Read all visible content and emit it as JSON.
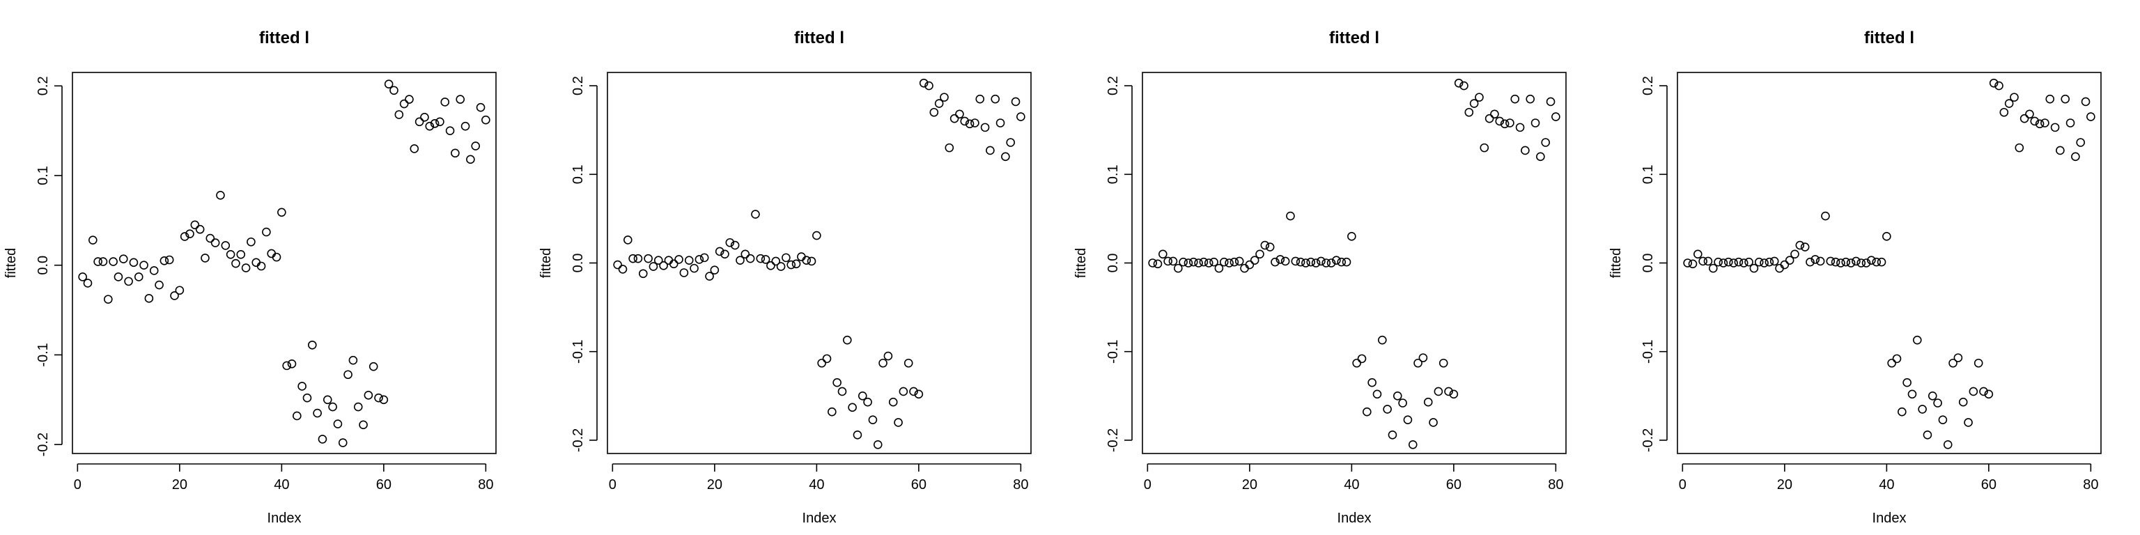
{
  "figure": {
    "background": "#ffffff",
    "point_stroke": "#000000"
  },
  "chart_data": [
    {
      "type": "scatter",
      "title": "fitted l",
      "xlabel": "Index",
      "ylabel": "fitted",
      "xlim": [
        -1,
        82
      ],
      "ylim": [
        -0.21,
        0.215
      ],
      "xticks": [
        0,
        20,
        40,
        60,
        80
      ],
      "yticks": [
        -0.2,
        -0.1,
        0.0,
        0.1,
        0.2
      ],
      "x": [
        1,
        2,
        3,
        4,
        5,
        6,
        7,
        8,
        9,
        10,
        11,
        12,
        13,
        14,
        15,
        16,
        17,
        18,
        19,
        20,
        21,
        22,
        23,
        24,
        25,
        26,
        27,
        28,
        29,
        30,
        31,
        32,
        33,
        34,
        35,
        36,
        37,
        38,
        39,
        40,
        41,
        42,
        43,
        44,
        45,
        46,
        47,
        48,
        49,
        50,
        51,
        52,
        53,
        54,
        55,
        56,
        57,
        58,
        59,
        60,
        61,
        62,
        63,
        64,
        65,
        66,
        67,
        68,
        69,
        70,
        71,
        72,
        73,
        74,
        75,
        76,
        77,
        78,
        79,
        80
      ],
      "y": [
        -0.013,
        -0.02,
        0.028,
        0.004,
        0.004,
        -0.038,
        0.004,
        -0.013,
        0.007,
        -0.018,
        0.003,
        -0.013,
        0.0,
        -0.037,
        -0.006,
        -0.022,
        0.005,
        0.006,
        -0.034,
        -0.028,
        0.032,
        0.035,
        0.045,
        0.04,
        0.008,
        0.03,
        0.025,
        0.078,
        0.022,
        0.012,
        0.002,
        0.012,
        -0.003,
        0.026,
        0.003,
        -0.001,
        0.037,
        0.013,
        0.009,
        0.059,
        -0.112,
        -0.11,
        -0.168,
        -0.135,
        -0.148,
        -0.089,
        -0.165,
        -0.194,
        -0.15,
        -0.158,
        -0.177,
        -0.198,
        -0.122,
        -0.106,
        -0.158,
        -0.178,
        -0.145,
        -0.113,
        -0.148,
        -0.15,
        0.202,
        0.195,
        0.168,
        0.18,
        0.185,
        0.13,
        0.16,
        0.165,
        0.155,
        0.158,
        0.16,
        0.182,
        0.15,
        0.125,
        0.185,
        0.155,
        0.118,
        0.133,
        0.176,
        0.162
      ]
    },
    {
      "type": "scatter",
      "title": "fitted l",
      "xlabel": "Index",
      "ylabel": "fitted",
      "xlim": [
        -1,
        82
      ],
      "ylim": [
        -0.215,
        0.215
      ],
      "xticks": [
        0,
        20,
        40,
        60,
        80
      ],
      "yticks": [
        -0.2,
        -0.1,
        0.0,
        0.1,
        0.2
      ],
      "x": [
        1,
        2,
        3,
        4,
        5,
        6,
        7,
        8,
        9,
        10,
        11,
        12,
        13,
        14,
        15,
        16,
        17,
        18,
        19,
        20,
        21,
        22,
        23,
        24,
        25,
        26,
        27,
        28,
        29,
        30,
        31,
        32,
        33,
        34,
        35,
        36,
        37,
        38,
        39,
        40,
        41,
        42,
        43,
        44,
        45,
        46,
        47,
        48,
        49,
        50,
        51,
        52,
        53,
        54,
        55,
        56,
        57,
        58,
        59,
        60,
        61,
        62,
        63,
        64,
        65,
        66,
        67,
        68,
        69,
        70,
        71,
        72,
        73,
        74,
        75,
        76,
        77,
        78,
        79,
        80
      ],
      "y": [
        -0.002,
        -0.007,
        0.026,
        0.005,
        0.005,
        -0.012,
        0.005,
        -0.004,
        0.003,
        -0.003,
        0.003,
        -0.001,
        0.004,
        -0.011,
        0.003,
        -0.006,
        0.004,
        0.006,
        -0.015,
        -0.008,
        0.013,
        0.01,
        0.023,
        0.02,
        0.003,
        0.01,
        0.005,
        0.055,
        0.005,
        0.004,
        -0.003,
        0.002,
        -0.004,
        0.006,
        -0.002,
        -0.001,
        0.007,
        0.003,
        0.002,
        0.031,
        -0.113,
        -0.108,
        -0.168,
        -0.135,
        -0.145,
        -0.087,
        -0.163,
        -0.194,
        -0.15,
        -0.157,
        -0.177,
        -0.205,
        -0.113,
        -0.105,
        -0.157,
        -0.18,
        -0.145,
        -0.113,
        -0.145,
        -0.148,
        0.203,
        0.2,
        0.17,
        0.18,
        0.187,
        0.13,
        0.163,
        0.168,
        0.16,
        0.157,
        0.158,
        0.185,
        0.153,
        0.127,
        0.185,
        0.158,
        0.12,
        0.136,
        0.182,
        0.165
      ]
    },
    {
      "type": "scatter",
      "title": "fitted l",
      "xlabel": "Index",
      "ylabel": "fitted",
      "xlim": [
        -1,
        82
      ],
      "ylim": [
        -0.215,
        0.215
      ],
      "xticks": [
        0,
        20,
        40,
        60,
        80
      ],
      "yticks": [
        -0.2,
        -0.1,
        0.0,
        0.1,
        0.2
      ],
      "x": [
        1,
        2,
        3,
        4,
        5,
        6,
        7,
        8,
        9,
        10,
        11,
        12,
        13,
        14,
        15,
        16,
        17,
        18,
        19,
        20,
        21,
        22,
        23,
        24,
        25,
        26,
        27,
        28,
        29,
        30,
        31,
        32,
        33,
        34,
        35,
        36,
        37,
        38,
        39,
        40,
        41,
        42,
        43,
        44,
        45,
        46,
        47,
        48,
        49,
        50,
        51,
        52,
        53,
        54,
        55,
        56,
        57,
        58,
        59,
        60,
        61,
        62,
        63,
        64,
        65,
        66,
        67,
        68,
        69,
        70,
        71,
        72,
        73,
        74,
        75,
        76,
        77,
        78,
        79,
        80
      ],
      "y": [
        0.0,
        -0.001,
        0.01,
        0.002,
        0.002,
        -0.006,
        0.001,
        0.0,
        0.001,
        0.0,
        0.001,
        0.0,
        0.001,
        -0.006,
        0.001,
        0.0,
        0.001,
        0.002,
        -0.006,
        -0.002,
        0.003,
        0.01,
        0.02,
        0.018,
        0.001,
        0.004,
        0.002,
        0.053,
        0.002,
        0.001,
        0.0,
        0.001,
        0.0,
        0.002,
        0.0,
        0.0,
        0.003,
        0.001,
        0.001,
        0.03,
        -0.113,
        -0.108,
        -0.168,
        -0.135,
        -0.148,
        -0.087,
        -0.165,
        -0.194,
        -0.15,
        -0.158,
        -0.177,
        -0.205,
        -0.113,
        -0.107,
        -0.157,
        -0.18,
        -0.145,
        -0.113,
        -0.145,
        -0.148,
        0.203,
        0.2,
        0.17,
        0.18,
        0.187,
        0.13,
        0.163,
        0.168,
        0.16,
        0.157,
        0.158,
        0.185,
        0.153,
        0.127,
        0.185,
        0.158,
        0.12,
        0.136,
        0.182,
        0.165
      ]
    },
    {
      "type": "scatter",
      "title": "fitted l",
      "xlabel": "Index",
      "ylabel": "fitted",
      "xlim": [
        -1,
        82
      ],
      "ylim": [
        -0.215,
        0.215
      ],
      "xticks": [
        0,
        20,
        40,
        60,
        80
      ],
      "yticks": [
        -0.2,
        -0.1,
        0.0,
        0.1,
        0.2
      ],
      "x": [
        1,
        2,
        3,
        4,
        5,
        6,
        7,
        8,
        9,
        10,
        11,
        12,
        13,
        14,
        15,
        16,
        17,
        18,
        19,
        20,
        21,
        22,
        23,
        24,
        25,
        26,
        27,
        28,
        29,
        30,
        31,
        32,
        33,
        34,
        35,
        36,
        37,
        38,
        39,
        40,
        41,
        42,
        43,
        44,
        45,
        46,
        47,
        48,
        49,
        50,
        51,
        52,
        53,
        54,
        55,
        56,
        57,
        58,
        59,
        60,
        61,
        62,
        63,
        64,
        65,
        66,
        67,
        68,
        69,
        70,
        71,
        72,
        73,
        74,
        75,
        76,
        77,
        78,
        79,
        80
      ],
      "y": [
        0.0,
        -0.001,
        0.01,
        0.002,
        0.002,
        -0.006,
        0.001,
        0.0,
        0.001,
        0.0,
        0.001,
        0.0,
        0.001,
        -0.006,
        0.001,
        0.0,
        0.001,
        0.002,
        -0.006,
        -0.002,
        0.003,
        0.01,
        0.02,
        0.018,
        0.001,
        0.004,
        0.002,
        0.053,
        0.002,
        0.001,
        0.0,
        0.001,
        0.0,
        0.002,
        0.0,
        0.0,
        0.003,
        0.001,
        0.001,
        0.03,
        -0.113,
        -0.108,
        -0.168,
        -0.135,
        -0.148,
        -0.087,
        -0.165,
        -0.194,
        -0.15,
        -0.158,
        -0.177,
        -0.205,
        -0.113,
        -0.107,
        -0.157,
        -0.18,
        -0.145,
        -0.113,
        -0.145,
        -0.148,
        0.203,
        0.2,
        0.17,
        0.18,
        0.187,
        0.13,
        0.163,
        0.168,
        0.16,
        0.157,
        0.158,
        0.185,
        0.153,
        0.127,
        0.185,
        0.158,
        0.12,
        0.136,
        0.182,
        0.165
      ]
    }
  ]
}
